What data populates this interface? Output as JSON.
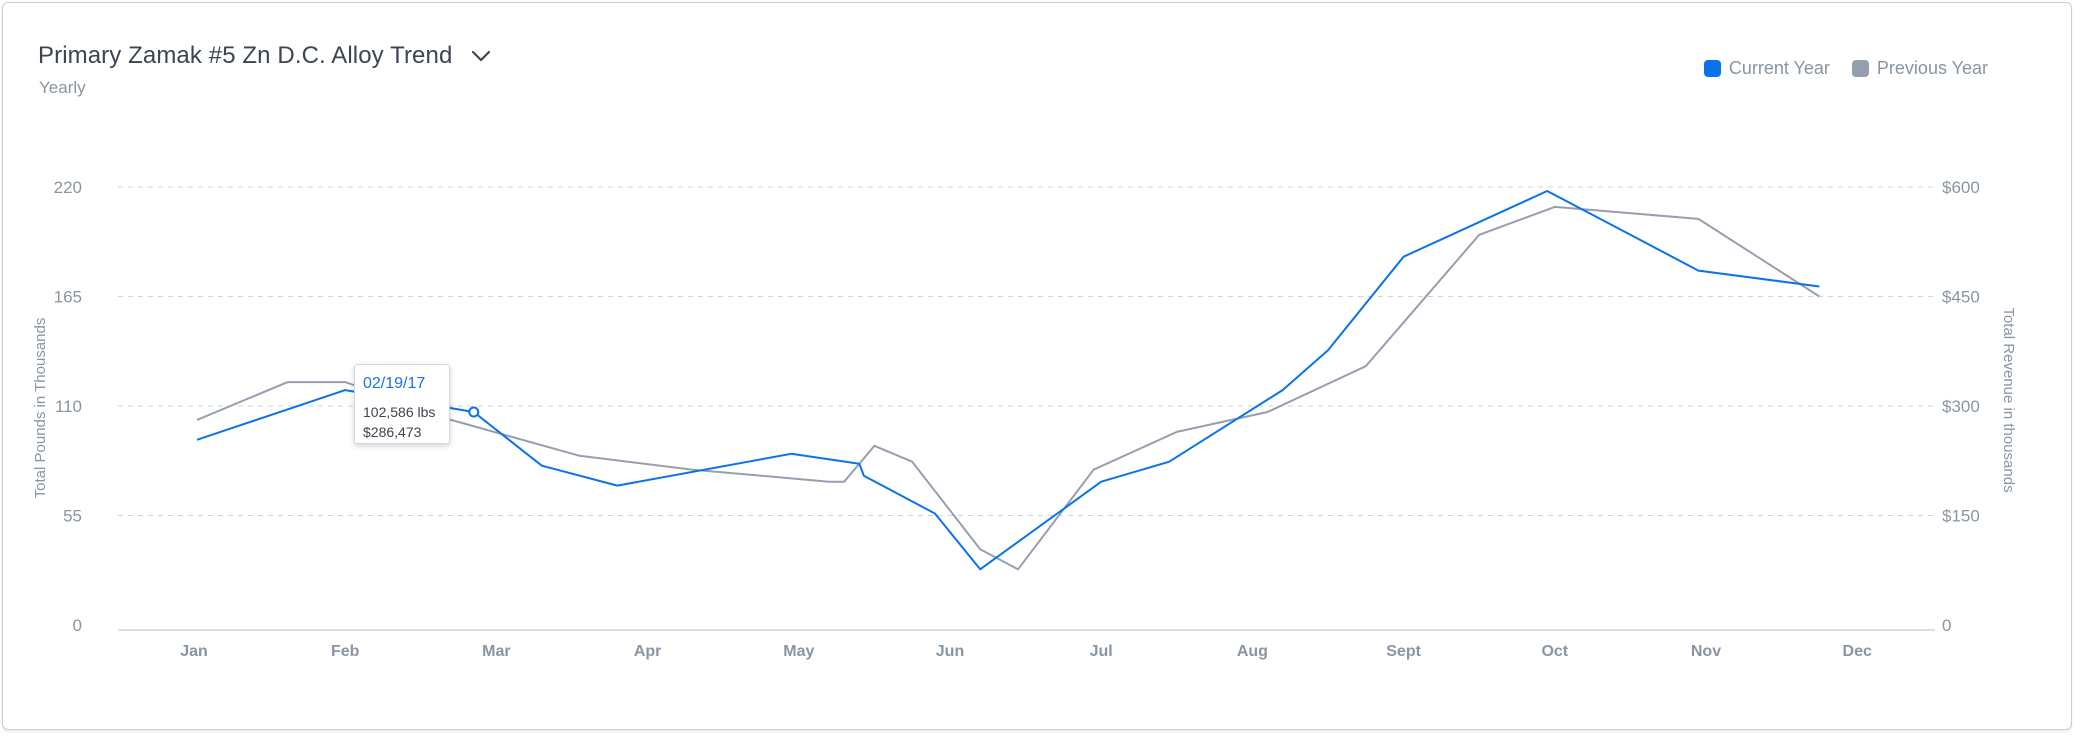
{
  "header": {
    "title": "Primary Zamak #5 Zn D.C. Alloy Trend",
    "subtitle": "Yearly"
  },
  "legend": {
    "current": {
      "label": "Current Year",
      "color": "#0a73ea"
    },
    "previous": {
      "label": "Previous Year",
      "color": "#969fb0"
    }
  },
  "tooltip": {
    "date": "02/19/17",
    "pounds": "102,586 lbs",
    "revenue": "$286,473"
  },
  "chart_data": {
    "type": "line",
    "x_ticks": [
      "Jan",
      "Feb",
      "Mar",
      "Apr",
      "May",
      "Jun",
      "Jul",
      "Aug",
      "Sept",
      "Oct",
      "Nov",
      "Dec"
    ],
    "ylabel": "Total Pounds in Thousands",
    "y2label": "Total Revenue in thousands",
    "ylim": [
      0,
      220
    ],
    "yticks": [
      0,
      55,
      110,
      165,
      220
    ],
    "y2ticks": [
      "0",
      "$150",
      "$300",
      "$450",
      "$600"
    ],
    "grid": true,
    "legend_position": "top-right",
    "series": [
      {
        "name": "Current Year",
        "color": "#0a73ea",
        "points": [
          [
            0.02,
            93
          ],
          [
            1.0,
            118
          ],
          [
            1.85,
            107
          ],
          [
            2.3,
            80
          ],
          [
            2.8,
            70
          ],
          [
            3.95,
            86
          ],
          [
            4.4,
            81
          ],
          [
            4.43,
            75
          ],
          [
            4.9,
            56
          ],
          [
            5.2,
            28
          ],
          [
            6.0,
            72
          ],
          [
            6.45,
            82
          ],
          [
            7.2,
            118
          ],
          [
            7.5,
            138
          ],
          [
            8.0,
            185
          ],
          [
            8.95,
            218
          ],
          [
            9.95,
            178
          ],
          [
            10.75,
            170
          ]
        ]
      },
      {
        "name": "Previous Year",
        "color": "#969fb0",
        "points": [
          [
            0.02,
            103
          ],
          [
            0.62,
            122
          ],
          [
            1.0,
            122
          ],
          [
            1.7,
            103
          ],
          [
            2.55,
            85
          ],
          [
            3.3,
            78
          ],
          [
            4.2,
            72
          ],
          [
            4.3,
            72
          ],
          [
            4.5,
            90
          ],
          [
            4.75,
            82
          ],
          [
            5.2,
            38
          ],
          [
            5.45,
            28
          ],
          [
            5.95,
            78
          ],
          [
            6.5,
            97
          ],
          [
            7.1,
            107
          ],
          [
            7.75,
            130
          ],
          [
            8.5,
            196
          ],
          [
            9.0,
            210
          ],
          [
            9.95,
            204
          ],
          [
            10.75,
            165
          ]
        ]
      }
    ],
    "highlighted_point": {
      "series": "Current Year",
      "x": 1.85,
      "y": 107
    }
  }
}
